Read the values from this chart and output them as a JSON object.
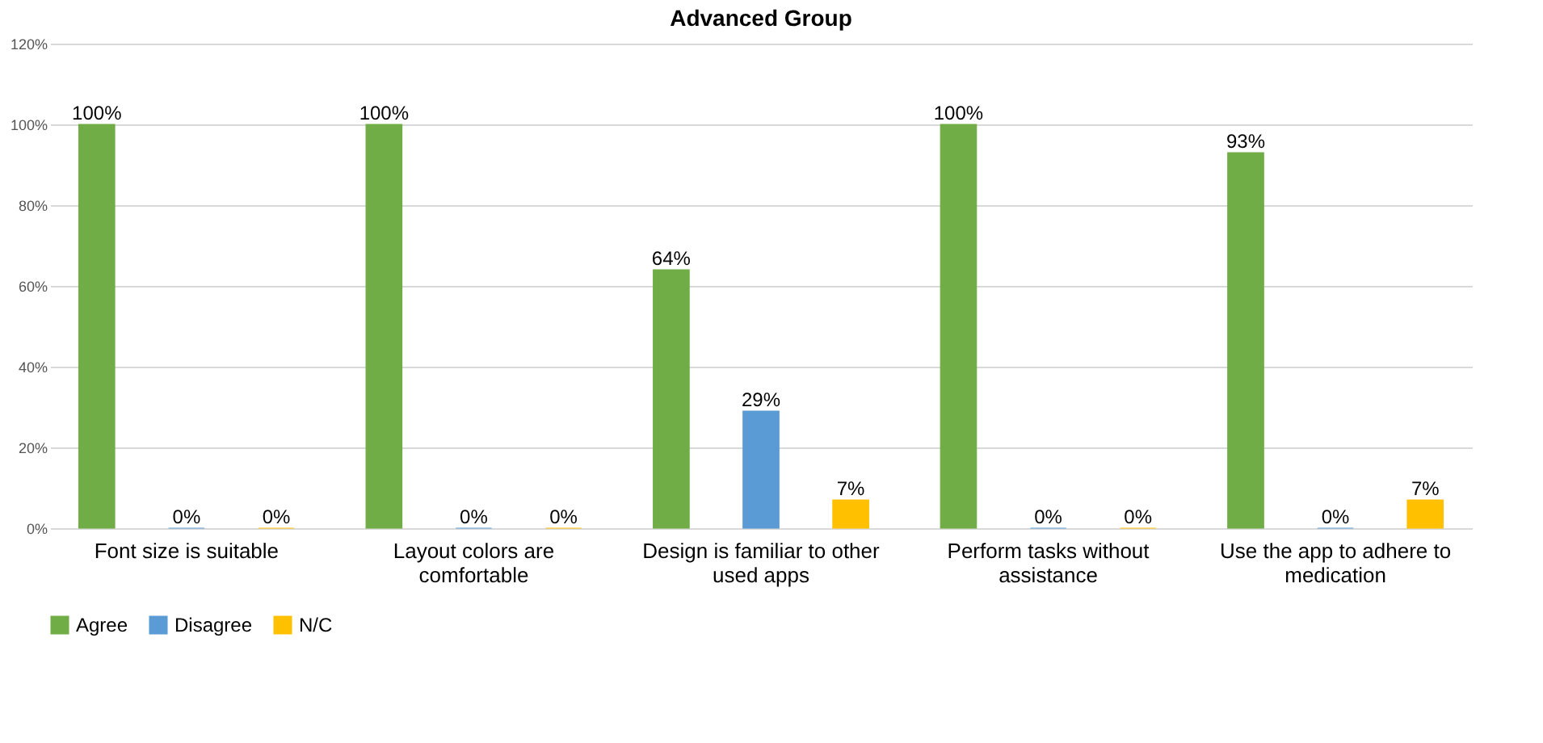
{
  "chart_data": {
    "type": "bar",
    "title": "Advanced Group",
    "categories": [
      "Font size is suitable",
      "Layout colors are comfortable",
      "Design is familiar to other used apps",
      "Perform tasks without assistance",
      "Use the app to adhere to medication"
    ],
    "series": [
      {
        "name": "Agree",
        "color": "#70ad47",
        "values": [
          100,
          100,
          64,
          100,
          93
        ],
        "value_labels": [
          "100%",
          "100%",
          "64%",
          "100%",
          "93%"
        ]
      },
      {
        "name": "Disagree",
        "color": "#5b9bd5",
        "values": [
          0,
          0,
          29,
          0,
          0
        ],
        "value_labels": [
          "0%",
          "0%",
          "29%",
          "0%",
          "0%"
        ]
      },
      {
        "name": "N/C",
        "color": "#ffc000",
        "values": [
          0,
          0,
          7,
          0,
          7
        ],
        "value_labels": [
          "0%",
          "0%",
          "7%",
          "0%",
          "7%"
        ]
      }
    ],
    "ylim": [
      0,
      120
    ],
    "yticks": [
      {
        "value": 0,
        "label": "0%"
      },
      {
        "value": 20,
        "label": "20%"
      },
      {
        "value": 40,
        "label": "40%"
      },
      {
        "value": 60,
        "label": "60%"
      },
      {
        "value": 80,
        "label": "80%"
      },
      {
        "value": 100,
        "label": "100%"
      },
      {
        "value": 120,
        "label": "120%"
      }
    ],
    "grid": "y",
    "legend": "bottom"
  }
}
